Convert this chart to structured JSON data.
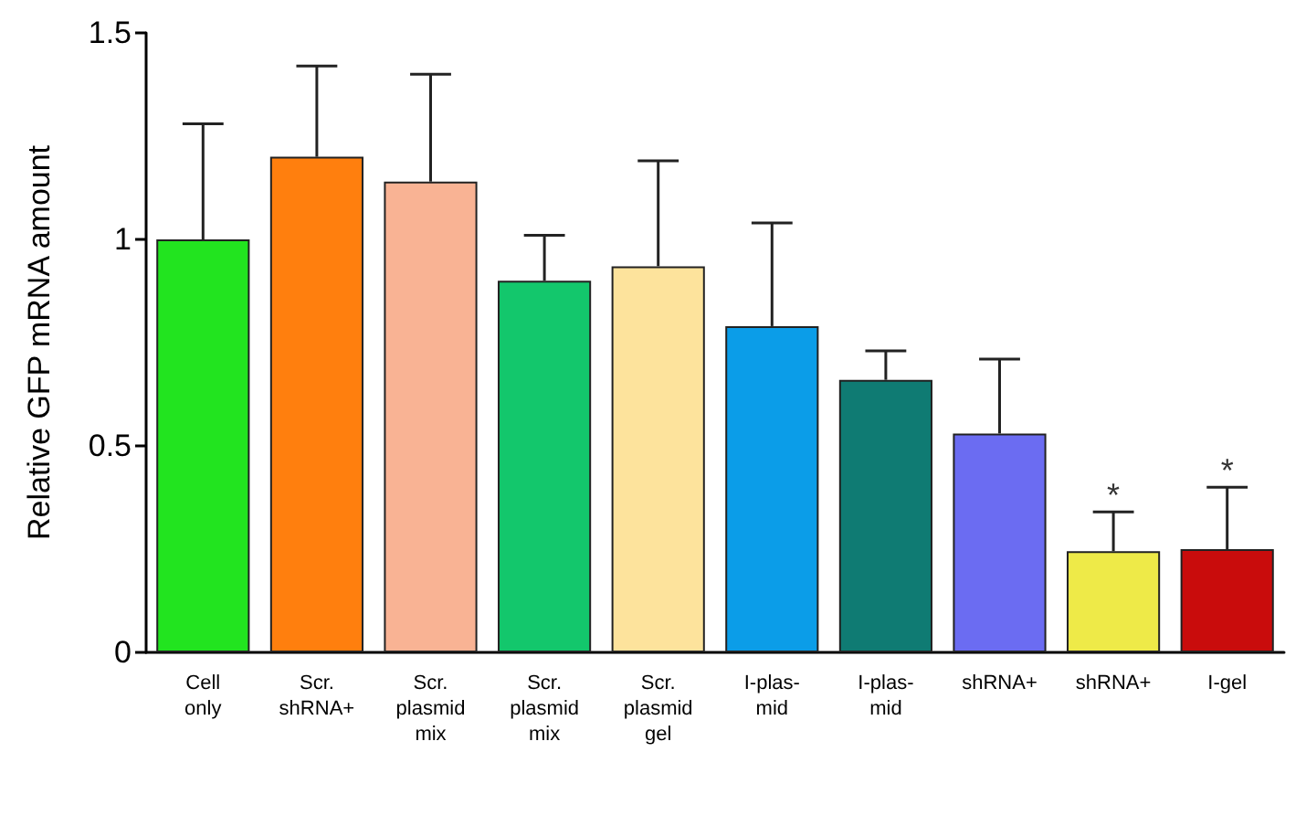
{
  "chart_data": {
    "type": "bar",
    "ylabel": "Relative GFP mRNA amount",
    "categories": [
      "Cell\nonly",
      "Scr.\nshRNA+",
      "Scr.\nplasmid\nmix",
      "Scr.\nplasmid\nmix",
      "Scr.\nplasmid\ngel",
      "I-plas-\nmid",
      "I-plas-\nmid",
      "shRNA+",
      "shRNA+",
      "I-gel"
    ],
    "values": [
      1.0,
      1.2,
      1.14,
      0.9,
      0.935,
      0.79,
      0.66,
      0.53,
      0.245,
      0.25
    ],
    "errors": [
      [
        1.0,
        1.28
      ],
      [
        1.2,
        1.42
      ],
      [
        1.14,
        1.4
      ],
      [
        0.9,
        1.01
      ],
      [
        0.935,
        1.19
      ],
      [
        0.79,
        1.04
      ],
      [
        0.66,
        0.73
      ],
      [
        0.53,
        0.71
      ],
      [
        0.245,
        0.34
      ],
      [
        0.25,
        0.4
      ]
    ],
    "colors": [
      "#22e41f",
      "#ff7f0e",
      "#f9b394",
      "#13c76c",
      "#fde39c",
      "#0b9de8",
      "#0f7b73",
      "#6b6cf2",
      "#eeea48",
      "#c90c0c"
    ],
    "value_labels": [
      null,
      null,
      null,
      null,
      null,
      null,
      null,
      null,
      "*",
      "*"
    ],
    "ylim": [
      0,
      1.5
    ],
    "yticks": [
      0,
      0.5,
      1,
      1.5
    ],
    "grid": false
  }
}
